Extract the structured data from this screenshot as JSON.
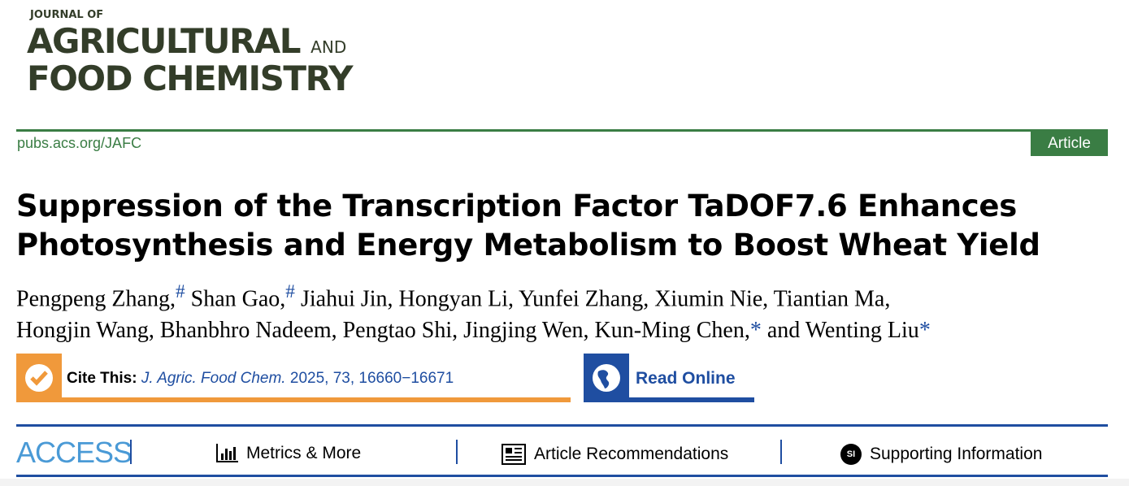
{
  "journal": {
    "line1": "JOURNAL OF",
    "line2": "AGRICULTURAL",
    "and": "AND",
    "line3": "FOOD CHEMISTRY"
  },
  "url": "pubs.acs.org/JAFC",
  "badge": "Article",
  "title": {
    "line1": "Suppression of the Transcription Factor TaDOF7.6 Enhances",
    "line2": "Photosynthesis and Energy Metabolism to Boost Wheat Yield"
  },
  "authors": {
    "a1": "Pengpeng Zhang,",
    "m1": "#",
    "a2": " Shan Gao,",
    "m2": "#",
    "a3": " Jiahui Jin, Hongyan Li, Yunfei Zhang, Xiumin Nie, Tiantian Ma,",
    "a4": "Hongjin Wang, Bhanbhro Nadeem, Pengtao Shi, Jingjing Wen, Kun-Ming Chen,",
    "m3": "*",
    "a5": " and Wenting Liu",
    "m4": "*"
  },
  "cite": {
    "label": "Cite This:",
    "journal": "J. Agric. Food Chem.",
    "ref": " 2025, 73, 16660−16671"
  },
  "read_online": "Read Online",
  "access": {
    "label": "ACCESS",
    "metrics": "Metrics & More",
    "recs": "Article Recommendations",
    "si": "Supporting Information",
    "si_icon": "SI"
  },
  "colors": {
    "green": "#3a7d44",
    "orange": "#f0993b",
    "blue": "#1f4ea1"
  }
}
